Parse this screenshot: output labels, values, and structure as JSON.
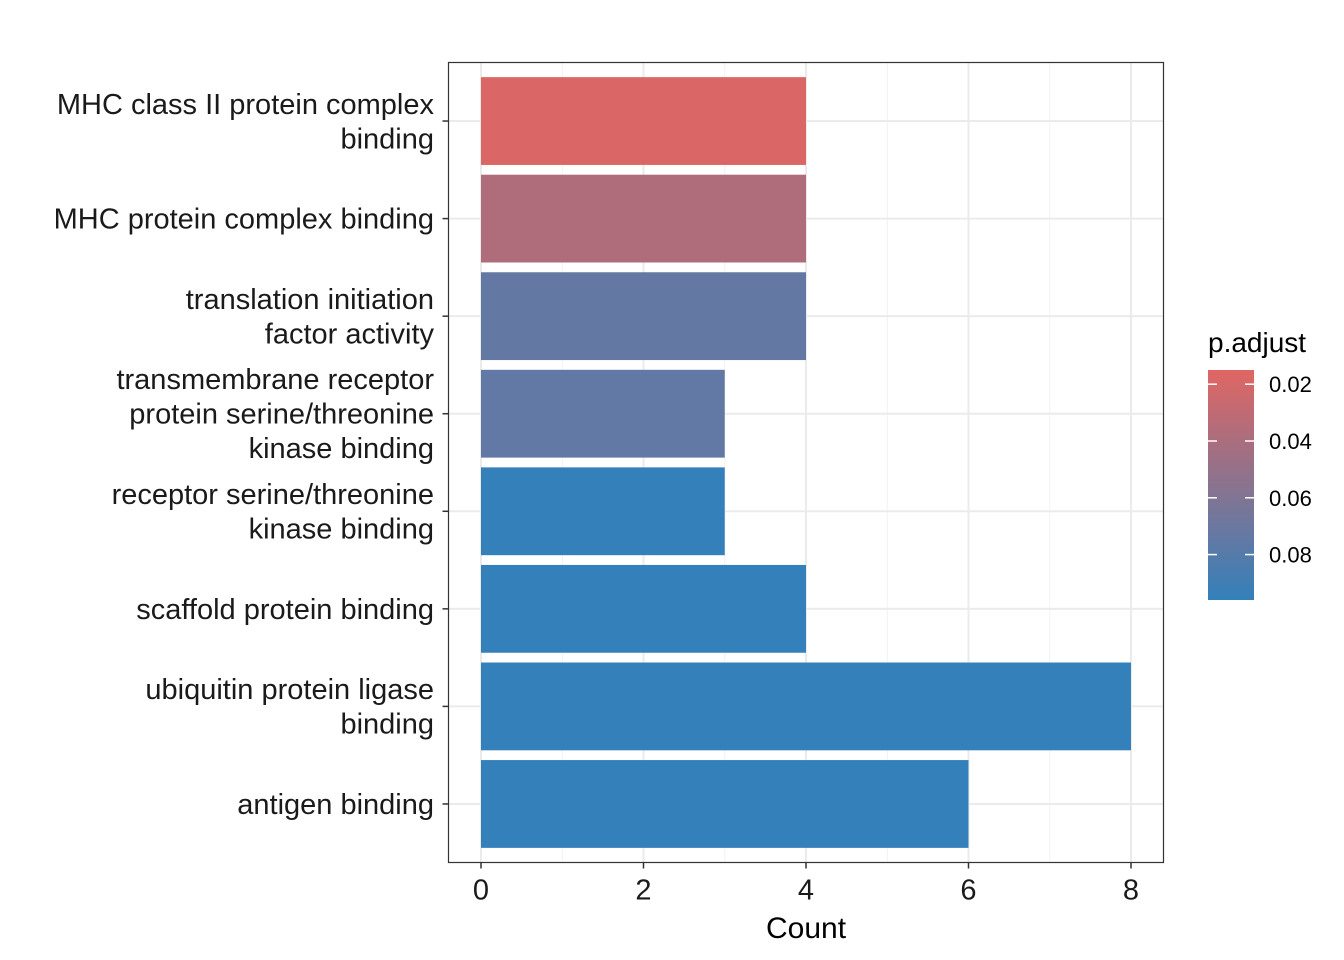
{
  "chart_data": {
    "type": "bar",
    "orientation": "horizontal",
    "categories": [
      "MHC class II protein complex binding",
      "MHC protein complex binding",
      "translation initiation factor activity",
      "transmembrane receptor protein serine/threonine kinase binding",
      "receptor serine/threonine kinase binding",
      "scaffold protein binding",
      "ubiquitin protein ligase binding",
      "antigen binding"
    ],
    "category_lines": [
      [
        "MHC class II protein complex",
        "binding"
      ],
      [
        "MHC protein complex binding"
      ],
      [
        "translation initiation",
        "factor activity"
      ],
      [
        "transmembrane receptor",
        "protein serine/threonine",
        "kinase binding"
      ],
      [
        "receptor serine/threonine",
        "kinase binding"
      ],
      [
        "scaffold protein binding"
      ],
      [
        "ubiquitin protein ligase",
        "binding"
      ],
      [
        "antigen binding"
      ]
    ],
    "values": [
      4,
      4,
      4,
      3,
      3,
      4,
      8,
      6
    ],
    "p_adjust": [
      0.018,
      0.038,
      0.074,
      0.075,
      0.096,
      0.096,
      0.096,
      0.096
    ],
    "xlabel": "Count",
    "ylabel": "",
    "xlim": [
      -0.4,
      8.4
    ],
    "xticks": [
      0,
      2,
      4,
      6,
      8
    ],
    "grid": true,
    "legend": {
      "title": "p.adjust",
      "position": "right",
      "range": [
        0.015,
        0.096
      ],
      "ticks": [
        0.02,
        0.04,
        0.06,
        0.08
      ],
      "tick_labels": [
        "0.02",
        "0.04",
        "0.06",
        "0.08"
      ],
      "color_low_p": "#E06663",
      "color_high_p": "#3480BB"
    }
  }
}
